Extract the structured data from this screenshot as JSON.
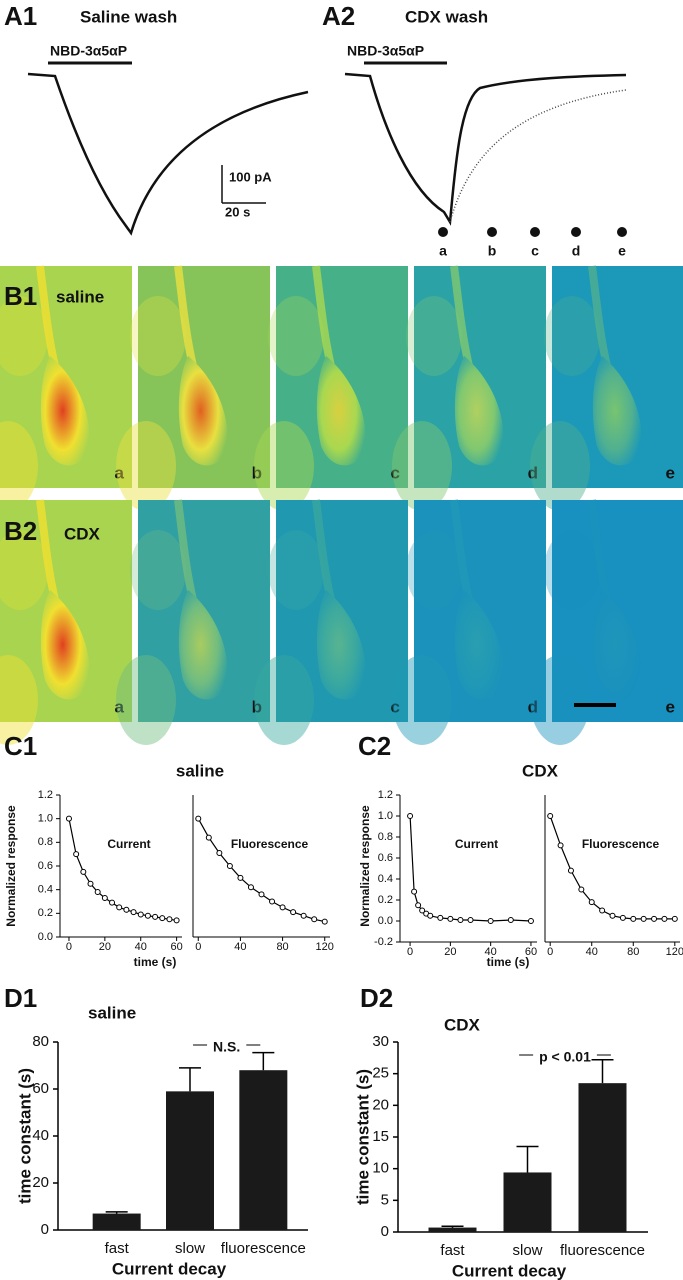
{
  "panels": {
    "A1": {
      "label": "A1",
      "title": "Saline wash",
      "drug": "NBD-3α5αP",
      "scale_current": "100 pA",
      "scale_time": "20 s"
    },
    "A2": {
      "label": "A2",
      "title": "CDX wash",
      "drug": "NBD-3α5αP",
      "time_points": [
        "a",
        "b",
        "c",
        "d",
        "e"
      ]
    },
    "B1": {
      "label": "B1",
      "title": "saline",
      "frames": [
        "a",
        "b",
        "c",
        "d",
        "e"
      ]
    },
    "B2": {
      "label": "B2",
      "title": "CDX",
      "frames": [
        "a",
        "b",
        "c",
        "d",
        "e"
      ]
    },
    "C1": {
      "label": "C1",
      "title": "saline",
      "ylabel": "Normalized response",
      "xlabel": "time (s)"
    },
    "C2": {
      "label": "C2",
      "title": "CDX",
      "ylabel": "Normalized response",
      "xlabel": "time (s)"
    }
  },
  "chart_data": [
    {
      "type": "line",
      "annotation": "Current",
      "color": "#000000",
      "x": [
        0,
        4,
        8,
        12,
        16,
        20,
        24,
        28,
        32,
        36,
        40,
        44,
        48,
        52,
        56,
        60
      ],
      "values": [
        1.0,
        0.7,
        0.55,
        0.45,
        0.38,
        0.33,
        0.29,
        0.25,
        0.23,
        0.21,
        0.19,
        0.18,
        0.17,
        0.16,
        0.15,
        0.14
      ],
      "xlim": [
        -5,
        63
      ],
      "ylim": [
        0,
        1.2
      ],
      "xticks": [
        0,
        20,
        40,
        60
      ],
      "yticks": [
        {
          "value": 0,
          "label": "0.0"
        },
        0.2,
        0.4,
        0.6,
        0.8,
        {
          "value": 1,
          "label": "1.0"
        },
        1.2
      ]
    },
    {
      "type": "line",
      "annotation": "Fluorescence",
      "color": "#000000",
      "x": [
        0,
        10,
        20,
        30,
        40,
        50,
        60,
        70,
        80,
        90,
        100,
        110,
        120
      ],
      "values": [
        1.0,
        0.84,
        0.71,
        0.6,
        0.5,
        0.42,
        0.36,
        0.3,
        0.25,
        0.21,
        0.18,
        0.15,
        0.13
      ],
      "xlim": [
        -5,
        125
      ],
      "ylim": [
        0,
        1.2
      ],
      "xticks": [
        0,
        40,
        80,
        120
      ]
    },
    {
      "type": "line",
      "annotation": "Current",
      "color": "#000000",
      "x": [
        0,
        2,
        4,
        6,
        8,
        10,
        15,
        20,
        25,
        30,
        40,
        50,
        60
      ],
      "values": [
        1.0,
        0.28,
        0.15,
        0.1,
        0.07,
        0.05,
        0.03,
        0.02,
        0.01,
        0.01,
        0.0,
        0.01,
        0.0
      ],
      "xlim": [
        -5,
        63
      ],
      "ylim": [
        -0.2,
        1.2
      ],
      "xticks": [
        0,
        20,
        40,
        60
      ],
      "yticks": [
        -0.2,
        {
          "value": 0,
          "label": "0.0"
        },
        0.2,
        0.4,
        0.6,
        0.8,
        {
          "value": 1,
          "label": "1.0"
        },
        1.2
      ]
    },
    {
      "type": "line",
      "annotation": "Fluorescence",
      "color": "#000000",
      "x": [
        0,
        10,
        20,
        30,
        40,
        50,
        60,
        70,
        80,
        90,
        100,
        110,
        120
      ],
      "values": [
        1.0,
        0.72,
        0.48,
        0.3,
        0.18,
        0.1,
        0.05,
        0.03,
        0.02,
        0.02,
        0.02,
        0.02,
        0.02
      ],
      "xlim": [
        -5,
        125
      ],
      "ylim": [
        -0.2,
        1.2
      ],
      "xticks": [
        0,
        40,
        80,
        120
      ]
    },
    {
      "type": "bar",
      "panel": "D1",
      "title": "saline",
      "categories": [
        "fast",
        "slow",
        "fluorescence"
      ],
      "values": [
        7,
        59,
        68
      ],
      "errors": [
        0.7,
        10,
        7.5
      ],
      "color": "#1a1a1a",
      "ylim": [
        0,
        80
      ],
      "yticks": [
        0,
        20,
        40,
        60,
        80
      ],
      "xlabel": "Current decay",
      "ylabel": "time constant (s)",
      "annotation": "N.S."
    },
    {
      "type": "bar",
      "panel": "D2",
      "title": "CDX",
      "categories": [
        "fast",
        "slow",
        "fluorescence"
      ],
      "values": [
        0.7,
        9.4,
        23.5
      ],
      "errors": [
        0.2,
        4.1,
        3.7
      ],
      "color": "#1a1a1a",
      "ylim": [
        0,
        30
      ],
      "yticks": [
        0,
        5,
        10,
        15,
        20,
        25,
        30
      ],
      "xlabel": "Current decay",
      "ylabel": "time constant (s)",
      "annotation": "p < 0.01"
    }
  ]
}
